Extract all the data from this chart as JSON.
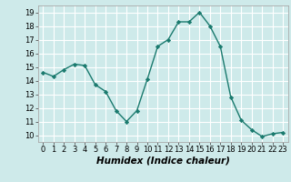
{
  "x": [
    0,
    1,
    2,
    3,
    4,
    5,
    6,
    7,
    8,
    9,
    10,
    11,
    12,
    13,
    14,
    15,
    16,
    17,
    18,
    19,
    20,
    21,
    22,
    23
  ],
  "y": [
    14.6,
    14.3,
    14.8,
    15.2,
    15.1,
    13.7,
    13.2,
    11.8,
    11.0,
    11.8,
    14.1,
    16.5,
    17.0,
    18.3,
    18.3,
    19.0,
    18.0,
    16.5,
    12.8,
    11.1,
    10.4,
    9.9,
    10.1,
    10.2
  ],
  "line_color": "#1a7a6e",
  "marker": "D",
  "marker_size": 2.2,
  "bg_color": "#ceeaea",
  "grid_color": "#ffffff",
  "xlabel": "Humidex (Indice chaleur)",
  "xlim": [
    -0.5,
    23.5
  ],
  "ylim": [
    9.5,
    19.5
  ],
  "yticks": [
    10,
    11,
    12,
    13,
    14,
    15,
    16,
    17,
    18,
    19
  ],
  "xticks": [
    0,
    1,
    2,
    3,
    4,
    5,
    6,
    7,
    8,
    9,
    10,
    11,
    12,
    13,
    14,
    15,
    16,
    17,
    18,
    19,
    20,
    21,
    22,
    23
  ],
  "tick_fontsize": 6.0,
  "xlabel_fontsize": 7.5,
  "line_width": 1.0
}
